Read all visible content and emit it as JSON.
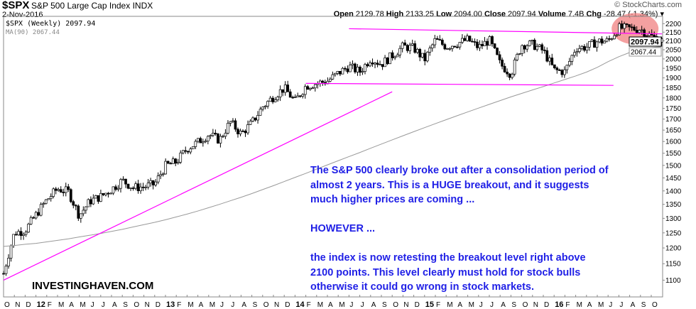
{
  "header": {
    "symbol": "$SPX",
    "name": "S&P 500 Large Cap Index",
    "exchange": "INDX",
    "date": "2-Nov-2016",
    "brand": "© StockCharts.com",
    "open_label": "Open",
    "open": "2129.78",
    "high_label": "High",
    "high": "2133.25",
    "low_label": "Low",
    "low": "2094.00",
    "close_label": "Close",
    "close": "2097.94",
    "volume_label": "Volume",
    "volume": "7.4B",
    "chg_label": "Chg",
    "chg": "-28.47 (-1.34%) ▾"
  },
  "legend": {
    "price": "$SPX (Weekly) 2097.94",
    "ma": "MA(90) 2067.44"
  },
  "annotation": {
    "lines": [
      "The S&P 500 clearly broke out after a consolidation period of",
      "almost 2 years. This is a HUGE breakout, and it suggests",
      "much higher prices are coming ...",
      "",
      "HOWEVER ...",
      "",
      "the index is now retesting the breakout level right above",
      "2100 points. This level clearly must hold for stock bulls",
      "otherwise it could go wrong in stock markets."
    ],
    "watermark": "INVESTINGHAVEN.COM"
  },
  "chart_data": {
    "type": "candlestick",
    "title": "$SPX S&P 500 Large Cap Index (Weekly)",
    "scale": "log",
    "ylim": [
      1060,
      2260
    ],
    "y_ticks": [
      2200,
      2150,
      2100,
      2050,
      2000,
      1950,
      1900,
      1850,
      1800,
      1750,
      1700,
      1650,
      1600,
      1550,
      1500,
      1450,
      1400,
      1350,
      1300,
      1250,
      1200,
      1150,
      1100
    ],
    "x_tick_labels": [
      "O",
      "N",
      "D",
      "12",
      "F",
      "M",
      "A",
      "M",
      "J",
      "J",
      "A",
      "S",
      "O",
      "N",
      "D",
      "13",
      "F",
      "M",
      "A",
      "M",
      "J",
      "J",
      "A",
      "S",
      "O",
      "N",
      "D",
      "14",
      "F",
      "M",
      "A",
      "M",
      "J",
      "J",
      "A",
      "S",
      "O",
      "N",
      "D",
      "15",
      "F",
      "M",
      "A",
      "M",
      "J",
      "J",
      "A",
      "S",
      "O",
      "N",
      "D",
      "16",
      "F",
      "M",
      "A",
      "M",
      "J",
      "J",
      "A",
      "S",
      "O"
    ],
    "monthly_close_approx": [
      1120,
      1250,
      1258,
      1312,
      1366,
      1408,
      1397,
      1310,
      1362,
      1379,
      1406,
      1440,
      1412,
      1416,
      1426,
      1498,
      1514,
      1569,
      1597,
      1631,
      1606,
      1686,
      1633,
      1682,
      1757,
      1806,
      1848,
      1783,
      1859,
      1872,
      1884,
      1924,
      1960,
      1931,
      2003,
      1972,
      2018,
      2068,
      2059,
      1995,
      2105,
      2068,
      2086,
      2107,
      2063,
      2104,
      1972,
      1920,
      2079,
      2080,
      2044,
      1940,
      1932,
      2060,
      2065,
      2097,
      2099,
      2174,
      2171,
      2168,
      2126,
      2098
    ],
    "ma90_monthly_approx": [
      1205,
      1208,
      1212,
      1215,
      1220,
      1225,
      1230,
      1236,
      1242,
      1248,
      1255,
      1262,
      1270,
      1278,
      1286,
      1295,
      1305,
      1315,
      1326,
      1338,
      1350,
      1363,
      1376,
      1390,
      1405,
      1420,
      1436,
      1452,
      1468,
      1485,
      1502,
      1519,
      1536,
      1553,
      1571,
      1589,
      1607,
      1625,
      1643,
      1661,
      1679,
      1697,
      1715,
      1733,
      1751,
      1769,
      1787,
      1805,
      1822,
      1839,
      1856,
      1874,
      1892,
      1910,
      1930,
      1955,
      1985,
      2012,
      2035,
      2052,
      2062,
      2067.44
    ],
    "last_price": "2097.94",
    "last_ma": "2067.44",
    "trendlines": [
      {
        "name": "resistance",
        "from": [
          32,
          2170
        ],
        "to": [
          61,
          2140
        ],
        "color": "#ff00ff"
      },
      {
        "name": "support",
        "from": [
          28,
          1872
        ],
        "to": [
          56.5,
          1862
        ],
        "color": "#ff00ff"
      },
      {
        "name": "rising-trendline",
        "from": [
          0,
          1100
        ],
        "to": [
          36,
          1830
        ],
        "color": "#ff00ff"
      }
    ],
    "highlight": {
      "center": [
        58.5,
        2170
      ],
      "color": "#f08080"
    },
    "series_colors": {
      "price": "#000000",
      "ma": "#999999",
      "trend": "#ff00ff"
    }
  }
}
